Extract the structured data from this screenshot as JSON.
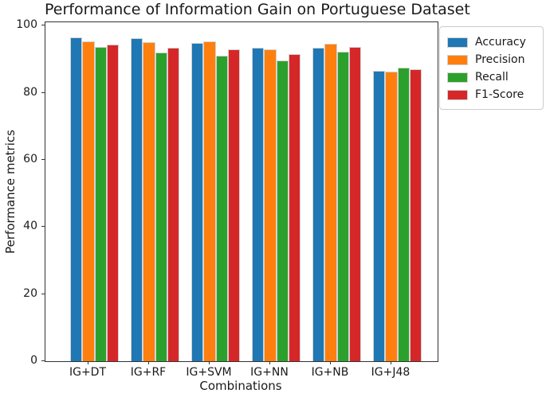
{
  "chart_data": {
    "type": "bar",
    "title": "Performance of Information Gain on Portuguese Dataset",
    "xlabel": "Combinations",
    "ylabel": "Performance metrics",
    "categories": [
      "IG+DT",
      "IG+RF",
      "IG+SVM",
      "IG+NN",
      "IG+NB",
      "IG+J48"
    ],
    "series": [
      {
        "name": "Accuracy",
        "color": "#1f77b4",
        "values": [
          96.5,
          96.3,
          94.8,
          93.4,
          93.5,
          86.6
        ]
      },
      {
        "name": "Precision",
        "color": "#ff7f0e",
        "values": [
          95.2,
          95.0,
          95.4,
          92.9,
          94.7,
          86.2
        ]
      },
      {
        "name": "Recall",
        "color": "#2ca02c",
        "values": [
          93.6,
          91.9,
          91.1,
          89.6,
          92.2,
          87.6
        ]
      },
      {
        "name": "F1-Score",
        "color": "#d62728",
        "values": [
          94.4,
          93.4,
          93.0,
          91.6,
          93.7,
          87.0
        ]
      }
    ],
    "yticks": [
      0,
      20,
      40,
      60,
      80,
      100
    ],
    "ylim": [
      0,
      101
    ],
    "grid": false,
    "legend_position": "outside upper right",
    "bar_edge_color": "#d3d3d3"
  }
}
